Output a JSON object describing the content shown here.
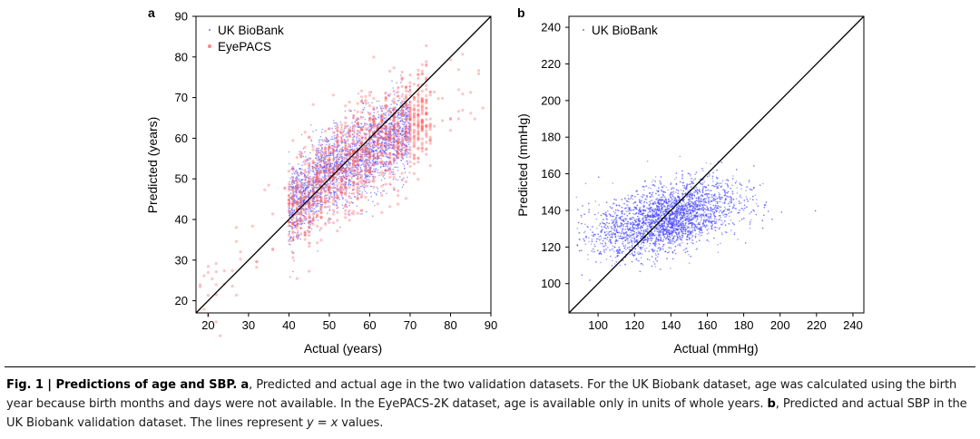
{
  "chart_data": [
    {
      "type": "scatter",
      "panel_label": "a",
      "title": "",
      "xlabel": "Actual (years)",
      "ylabel": "Predicted (years)",
      "xlim": [
        17,
        90
      ],
      "ylim": [
        17,
        90
      ],
      "xticks": [
        20,
        30,
        40,
        50,
        60,
        70,
        80,
        90
      ],
      "yticks": [
        20,
        30,
        40,
        50,
        60,
        70,
        80,
        90
      ],
      "legend_position": "top-left",
      "reference_line": "y = x",
      "series": [
        {
          "name": "UK BioBank",
          "color": "#4b4bff",
          "x_range": [
            40,
            70
          ],
          "points": [
            [
              40,
              43
            ],
            [
              45,
              47
            ],
            [
              50,
              52
            ],
            [
              55,
              54
            ],
            [
              60,
              57
            ],
            [
              65,
              60
            ],
            [
              70,
              62
            ]
          ],
          "spread": 5
        },
        {
          "name": "EyePACS",
          "color": "#ff5a5a",
          "x_range": [
            18,
            88
          ],
          "points": [
            [
              20,
              21
            ],
            [
              25,
              26
            ],
            [
              30,
              32
            ],
            [
              35,
              37
            ],
            [
              40,
              42
            ],
            [
              45,
              46
            ],
            [
              50,
              50
            ],
            [
              55,
              54
            ],
            [
              60,
              58
            ],
            [
              65,
              61
            ],
            [
              70,
              64
            ],
            [
              75,
              67
            ],
            [
              80,
              70
            ],
            [
              85,
              73
            ]
          ],
          "spread": 6
        }
      ]
    },
    {
      "type": "scatter",
      "panel_label": "b",
      "title": "",
      "xlabel": "Actual (mmHg)",
      "ylabel": "Predicted (mmHg)",
      "xlim": [
        84,
        246
      ],
      "ylim": [
        84,
        246
      ],
      "xticks": [
        100,
        120,
        140,
        160,
        180,
        200,
        220,
        240
      ],
      "yticks": [
        100,
        120,
        140,
        160,
        180,
        200,
        220,
        240
      ],
      "legend_position": "top-left",
      "reference_line": "y = x",
      "series": [
        {
          "name": "UK BioBank",
          "color": "#4b4bff",
          "points": [
            [
              100,
              126
            ],
            [
              120,
              131
            ],
            [
              140,
              136
            ],
            [
              160,
              141
            ],
            [
              180,
              145
            ],
            [
              200,
              148
            ]
          ],
          "spread": 9
        }
      ]
    }
  ],
  "caption": {
    "label": "Fig. 1 | Predictions of age and SBP.",
    "a_label": "a",
    "a_text": ", Predicted and actual age in the two validation datasets. For the UK Biobank dataset, age was calculated using the birth year because birth months and days were not available. In the EyePACS-2K dataset, age is available only in units of whole years.",
    "b_label": "b",
    "b_text_1": ", Predicted and actual SBP in the UK Biobank validation dataset. The lines represent",
    "b_eq": "y = x",
    "b_text_2": "values."
  }
}
